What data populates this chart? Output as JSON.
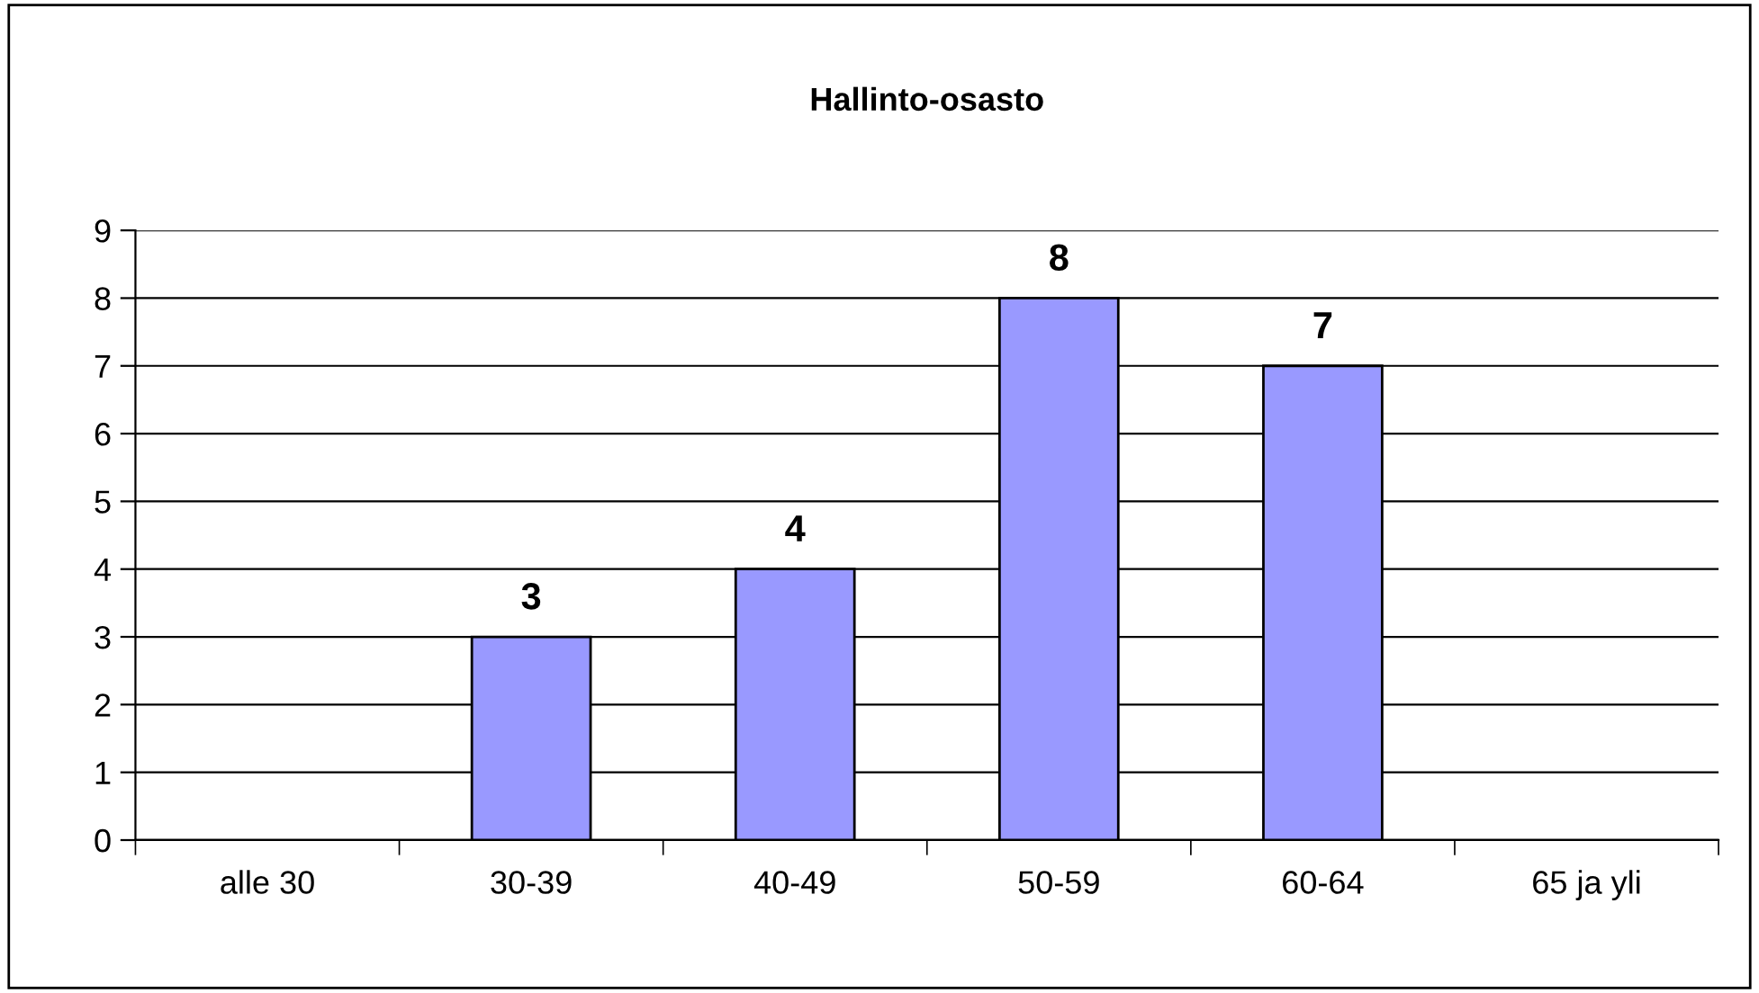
{
  "chart_data": {
    "type": "bar",
    "title": "Hallinto-osasto",
    "categories": [
      "alle 30",
      "30-39",
      "40-49",
      "50-59",
      "60-64",
      "65 ja yli"
    ],
    "values": [
      0,
      3,
      4,
      8,
      7,
      0
    ],
    "value_labels": [
      null,
      "3",
      "4",
      "8",
      "7",
      null
    ],
    "color": "#9999ff",
    "ylim": [
      0,
      9
    ],
    "yticks": [
      0,
      1,
      2,
      3,
      4,
      5,
      6,
      7,
      8,
      9
    ],
    "grid": "y",
    "legend": false
  }
}
